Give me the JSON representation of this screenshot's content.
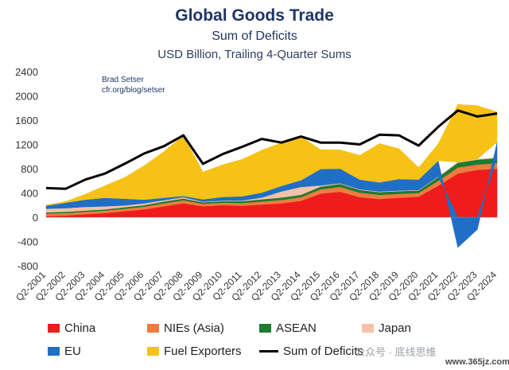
{
  "chart_data": {
    "type": "area",
    "title": "Global Goods Trade",
    "subtitle": "Sum of Deficits",
    "ylabel": "USD Billion, Trailing 4-Quarter Sums",
    "credit": [
      "Brad Setser",
      "cfr.org/blog/setser"
    ],
    "ylim": [
      -800,
      2400
    ],
    "yticks": [
      -800,
      -400,
      0,
      400,
      800,
      1200,
      1600,
      2000,
      2400
    ],
    "categories": [
      "Q2-2001",
      "Q2-2002",
      "Q2-2003",
      "Q2-2004",
      "Q2-2005",
      "Q2-2006",
      "Q2-2007",
      "Q2-2008",
      "Q2-2009",
      "Q2-2010",
      "Q2-2011",
      "Q2-2012",
      "Q2-2013",
      "Q2-2014",
      "Q2-2015",
      "Q2-2016",
      "Q2-2017",
      "Q2-2018",
      "Q2-2019",
      "Q2-2020",
      "Q2-2021",
      "Q2-2022",
      "Q2-2023",
      "Q2-2024"
    ],
    "series": [
      {
        "name": "China",
        "color": "#ee1c1c",
        "values": [
          20,
          30,
          50,
          70,
          100,
          130,
          180,
          230,
          180,
          200,
          190,
          210,
          230,
          270,
          390,
          420,
          330,
          300,
          320,
          340,
          520,
          720,
          780,
          800
        ]
      },
      {
        "name": "NIEs (Asia)",
        "color": "#ef7b3e",
        "values": [
          40,
          40,
          40,
          40,
          40,
          45,
          50,
          50,
          40,
          40,
          45,
          50,
          55,
          60,
          70,
          80,
          75,
          70,
          65,
          60,
          80,
          100,
          90,
          90
        ]
      },
      {
        "name": "ASEAN",
        "color": "#1e7b30",
        "values": [
          20,
          20,
          20,
          20,
          25,
          25,
          30,
          30,
          25,
          25,
          30,
          35,
          40,
          40,
          45,
          50,
          45,
          45,
          45,
          40,
          60,
          80,
          80,
          85
        ]
      },
      {
        "name": "Japan",
        "color": "#f5c1a8",
        "values": [
          60,
          60,
          60,
          50,
          30,
          30,
          20,
          20,
          10,
          10,
          10,
          30,
          100,
          130,
          20,
          10,
          10,
          10,
          10,
          10,
          10,
          10,
          10,
          10
        ]
      },
      {
        "name": "EU",
        "color": "#1f6fc6",
        "values": [
          50,
          90,
          120,
          140,
          110,
          60,
          40,
          20,
          40,
          60,
          70,
          80,
          90,
          110,
          270,
          240,
          160,
          150,
          190,
          170,
          260,
          -500,
          -200,
          250
        ]
      },
      {
        "name": "Fuel Exporters",
        "color": "#f6c216",
        "values": [
          10,
          20,
          90,
          200,
          350,
          560,
          760,
          1000,
          450,
          530,
          610,
          700,
          710,
          720,
          320,
          310,
          400,
          640,
          500,
          200,
          280,
          950,
          880,
          500
        ]
      },
      {
        "name": "Sum of Deficits",
        "color": "#000000",
        "line": true,
        "values": [
          480,
          470,
          620,
          720,
          880,
          1050,
          1170,
          1350,
          880,
          1040,
          1160,
          1290,
          1230,
          1330,
          1230,
          1230,
          1200,
          1360,
          1350,
          1180,
          1490,
          1760,
          1660,
          1710
        ]
      }
    ],
    "legend": "bottom",
    "grid": false
  },
  "watermark": "公众号 · 底线思维",
  "watermark2": "www.365jz.com"
}
